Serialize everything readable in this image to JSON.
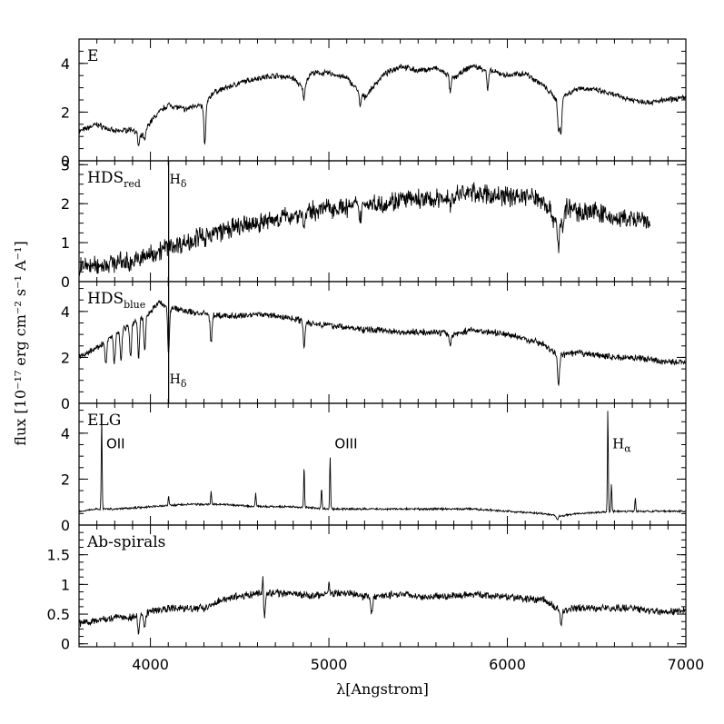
{
  "chart_data": {
    "type": "line",
    "xlabel": "λ[Angstrom]",
    "ylabel": "flux [10⁻¹⁷ erg cm⁻² s⁻¹ A⁻¹]",
    "xlim": [
      3600,
      7000
    ],
    "xticks": [
      "4000",
      "5000",
      "6000",
      "7000"
    ],
    "panels": [
      {
        "label": "E",
        "label_sub": "",
        "ylim": [
          0,
          5
        ],
        "yticks": [
          "0",
          "2",
          "4"
        ],
        "ytick_values": [
          0,
          2,
          4
        ],
        "series": [
          {
            "x_range": [
              3600,
              7000
            ],
            "anchors": [
              [
                3600,
                1.2
              ],
              [
                3700,
                1.5
              ],
              [
                3800,
                1.2
              ],
              [
                3900,
                1.3
              ],
              [
                3950,
                1.0
              ],
              [
                4000,
                1.6
              ],
              [
                4050,
                2.0
              ],
              [
                4100,
                2.3
              ],
              [
                4200,
                2.1
              ],
              [
                4250,
                2.3
              ],
              [
                4300,
                2.2
              ],
              [
                4350,
                2.8
              ],
              [
                4500,
                3.2
              ],
              [
                4600,
                3.4
              ],
              [
                4700,
                3.5
              ],
              [
                4800,
                3.4
              ],
              [
                4850,
                3.0
              ],
              [
                4900,
                3.6
              ],
              [
                5000,
                3.6
              ],
              [
                5100,
                3.4
              ],
              [
                5200,
                2.6
              ],
              [
                5300,
                3.5
              ],
              [
                5400,
                3.9
              ],
              [
                5500,
                3.7
              ],
              [
                5600,
                3.8
              ],
              [
                5700,
                3.4
              ],
              [
                5800,
                3.9
              ],
              [
                5900,
                3.7
              ],
              [
                6000,
                3.5
              ],
              [
                6100,
                3.6
              ],
              [
                6200,
                3.1
              ],
              [
                6280,
                2.5
              ],
              [
                6350,
                2.8
              ],
              [
                6400,
                3.0
              ],
              [
                6500,
                2.9
              ],
              [
                6600,
                2.7
              ],
              [
                6700,
                2.5
              ],
              [
                6800,
                2.4
              ],
              [
                6900,
                2.5
              ],
              [
                7000,
                2.6
              ]
            ],
            "dips": [
              [
                3934,
                0.5
              ],
              [
                3968,
                0.4
              ],
              [
                4305,
                1.6
              ],
              [
                4861,
                0.6
              ],
              [
                5175,
                0.6
              ],
              [
                5680,
                0.7
              ],
              [
                5890,
                0.8
              ],
              [
                6287,
                1.3
              ],
              [
                6300,
                1.5
              ]
            ],
            "noise": 0.09
          }
        ]
      },
      {
        "label": "HDS",
        "label_sub": "red",
        "ylim": [
          0,
          3.1
        ],
        "yticks": [
          "0",
          "1",
          "2",
          "3"
        ],
        "ytick_values": [
          0,
          1,
          2,
          3
        ],
        "marker": {
          "x": 4102,
          "text": "H",
          "sub": "δ",
          "pos": "top"
        },
        "series": [
          {
            "x_range": [
              3600,
              6800
            ],
            "anchors": [
              [
                3600,
                0.4
              ],
              [
                3700,
                0.4
              ],
              [
                3800,
                0.5
              ],
              [
                3900,
                0.5
              ],
              [
                4000,
                0.7
              ],
              [
                4100,
                0.9
              ],
              [
                4200,
                1.0
              ],
              [
                4300,
                1.2
              ],
              [
                4400,
                1.3
              ],
              [
                4500,
                1.4
              ],
              [
                4600,
                1.5
              ],
              [
                4700,
                1.6
              ],
              [
                4800,
                1.7
              ],
              [
                4900,
                1.8
              ],
              [
                5000,
                1.9
              ],
              [
                5100,
                1.9
              ],
              [
                5200,
                2.0
              ],
              [
                5300,
                2.0
              ],
              [
                5400,
                2.1
              ],
              [
                5500,
                2.1
              ],
              [
                5600,
                2.1
              ],
              [
                5700,
                2.2
              ],
              [
                5800,
                2.3
              ],
              [
                5900,
                2.2
              ],
              [
                6000,
                2.2
              ],
              [
                6100,
                2.2
              ],
              [
                6200,
                2.1
              ],
              [
                6280,
                1.5
              ],
              [
                6330,
                1.9
              ],
              [
                6400,
                1.8
              ],
              [
                6500,
                1.8
              ],
              [
                6600,
                1.6
              ],
              [
                6700,
                1.6
              ],
              [
                6800,
                1.5
              ]
            ],
            "dips": [
              [
                4305,
                0.3
              ],
              [
                4861,
                0.4
              ],
              [
                5175,
                0.4
              ],
              [
                5680,
                0.3
              ],
              [
                6287,
                0.7
              ],
              [
                6310,
                0.5
              ]
            ],
            "noise": 0.2
          }
        ]
      },
      {
        "label": "HDS",
        "label_sub": "blue",
        "ylim": [
          0,
          5.3
        ],
        "yticks": [
          "0",
          "2",
          "4"
        ],
        "ytick_values": [
          0,
          2,
          4
        ],
        "marker": {
          "x": 4102,
          "text": "H",
          "sub": "δ",
          "pos": "bottom"
        },
        "series": [
          {
            "x_range": [
              3600,
              7000
            ],
            "anchors": [
              [
                3600,
                2.0
              ],
              [
                3700,
                2.4
              ],
              [
                3800,
                3.0
              ],
              [
                3900,
                3.5
              ],
              [
                4000,
                4.0
              ],
              [
                4050,
                4.4
              ],
              [
                4100,
                4.2
              ],
              [
                4200,
                4.0
              ],
              [
                4300,
                3.9
              ],
              [
                4400,
                3.8
              ],
              [
                4500,
                3.8
              ],
              [
                4600,
                3.9
              ],
              [
                4700,
                3.8
              ],
              [
                4800,
                3.7
              ],
              [
                4900,
                3.5
              ],
              [
                5000,
                3.4
              ],
              [
                5100,
                3.3
              ],
              [
                5200,
                3.2
              ],
              [
                5300,
                3.2
              ],
              [
                5400,
                3.1
              ],
              [
                5500,
                3.1
              ],
              [
                5600,
                3.1
              ],
              [
                5700,
                3.0
              ],
              [
                5800,
                3.2
              ],
              [
                5900,
                3.1
              ],
              [
                6000,
                3.0
              ],
              [
                6100,
                2.8
              ],
              [
                6200,
                2.6
              ],
              [
                6260,
                2.2
              ],
              [
                6300,
                2.1
              ],
              [
                6400,
                2.2
              ],
              [
                6500,
                2.1
              ],
              [
                6600,
                2.0
              ],
              [
                6700,
                2.0
              ],
              [
                6800,
                1.9
              ],
              [
                6900,
                1.8
              ],
              [
                7000,
                1.8
              ]
            ],
            "dips": [
              [
                3750,
                1.0
              ],
              [
                3798,
                1.2
              ],
              [
                3835,
                1.3
              ],
              [
                3889,
                1.5
              ],
              [
                3934,
                1.6
              ],
              [
                3968,
                1.6
              ],
              [
                4102,
                2.0
              ],
              [
                4340,
                1.2
              ],
              [
                4861,
                1.1
              ],
              [
                5680,
                0.5
              ],
              [
                6287,
                1.4
              ]
            ],
            "noise": 0.11
          }
        ]
      },
      {
        "label": "ELG",
        "label_sub": "",
        "ylim": [
          0,
          5.3
        ],
        "yticks": [
          "0",
          "2",
          "4"
        ],
        "ytick_values": [
          0,
          2,
          4
        ],
        "annotations": [
          {
            "text": "OII",
            "sub": "",
            "x": 3727,
            "y": 3.5
          },
          {
            "text": "OIII",
            "sub": "",
            "x": 5007,
            "y": 3.5
          },
          {
            "text": "H",
            "sub": "α",
            "x": 6563,
            "y": 3.5
          }
        ],
        "series": [
          {
            "x_range": [
              3600,
              7000
            ],
            "anchors": [
              [
                3600,
                0.6
              ],
              [
                3700,
                0.7
              ],
              [
                3800,
                0.7
              ],
              [
                4000,
                0.8
              ],
              [
                4200,
                0.9
              ],
              [
                4400,
                0.9
              ],
              [
                4600,
                0.8
              ],
              [
                4800,
                0.8
              ],
              [
                5000,
                0.7
              ],
              [
                5200,
                0.7
              ],
              [
                5400,
                0.7
              ],
              [
                5600,
                0.7
              ],
              [
                5800,
                0.7
              ],
              [
                6000,
                0.6
              ],
              [
                6200,
                0.5
              ],
              [
                6300,
                0.4
              ],
              [
                6400,
                0.5
              ],
              [
                6600,
                0.6
              ],
              [
                6800,
                0.6
              ],
              [
                7000,
                0.6
              ]
            ],
            "lines": [
              [
                3727,
                4.1
              ],
              [
                4102,
                0.4
              ],
              [
                4340,
                0.6
              ],
              [
                4590,
                0.6
              ],
              [
                4861,
                1.8
              ],
              [
                4959,
                0.9
              ],
              [
                5007,
                2.3
              ],
              [
                6563,
                4.5
              ],
              [
                6583,
                1.2
              ],
              [
                6717,
                0.6
              ]
            ],
            "dips": [
              [
                6280,
                0.2
              ]
            ],
            "noise": 0.035
          }
        ]
      },
      {
        "label": "Ab-spirals",
        "label_sub": "",
        "ylim": [
          -0.05,
          2.0
        ],
        "yticks": [
          "0",
          "0.5",
          "1",
          "1.5"
        ],
        "ytick_values": [
          0,
          0.5,
          1,
          1.5
        ],
        "series": [
          {
            "x_range": [
              3600,
              7000
            ],
            "anchors": [
              [
                3600,
                0.35
              ],
              [
                3700,
                0.4
              ],
              [
                3800,
                0.45
              ],
              [
                3900,
                0.45
              ],
              [
                4000,
                0.55
              ],
              [
                4100,
                0.6
              ],
              [
                4200,
                0.6
              ],
              [
                4300,
                0.6
              ],
              [
                4400,
                0.75
              ],
              [
                4500,
                0.8
              ],
              [
                4600,
                0.85
              ],
              [
                4700,
                0.85
              ],
              [
                4800,
                0.85
              ],
              [
                4900,
                0.8
              ],
              [
                5000,
                0.85
              ],
              [
                5100,
                0.85
              ],
              [
                5200,
                0.8
              ],
              [
                5300,
                0.8
              ],
              [
                5400,
                0.85
              ],
              [
                5500,
                0.8
              ],
              [
                5600,
                0.8
              ],
              [
                5700,
                0.8
              ],
              [
                5800,
                0.85
              ],
              [
                5900,
                0.8
              ],
              [
                6000,
                0.8
              ],
              [
                6100,
                0.75
              ],
              [
                6200,
                0.75
              ],
              [
                6300,
                0.55
              ],
              [
                6400,
                0.6
              ],
              [
                6500,
                0.6
              ],
              [
                6600,
                0.6
              ],
              [
                6700,
                0.6
              ],
              [
                6800,
                0.55
              ],
              [
                6900,
                0.55
              ],
              [
                7000,
                0.55
              ]
            ],
            "dips": [
              [
                3934,
                0.3
              ],
              [
                3968,
                0.25
              ],
              [
                4640,
                0.4
              ],
              [
                5240,
                0.3
              ],
              [
                6300,
                0.25
              ]
            ],
            "lines": [
              [
                4630,
                0.3
              ],
              [
                5000,
                0.2
              ]
            ],
            "noise": 0.05
          }
        ]
      }
    ]
  }
}
